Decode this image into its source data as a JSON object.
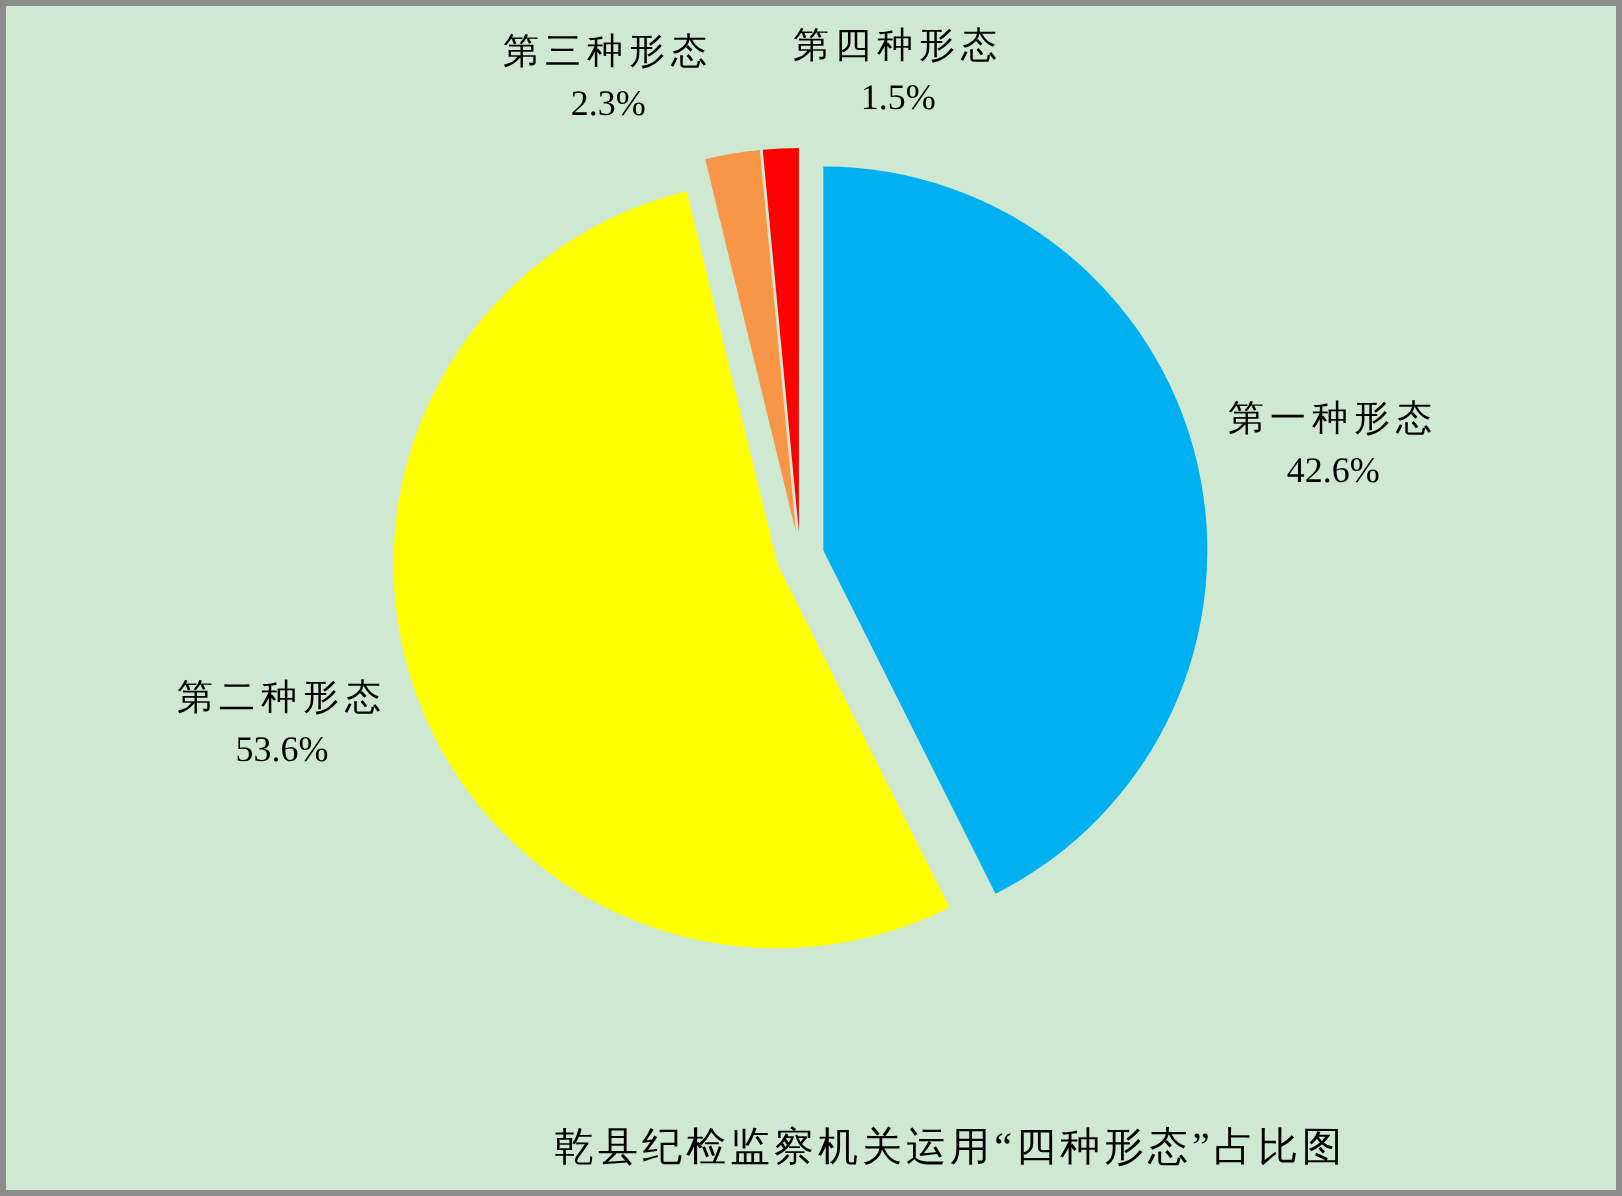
{
  "chart_data": {
    "type": "pie",
    "title": "乾县纪检监察机关运用“四种形态”占比图",
    "categories": [
      "第一种形态",
      "第二种形态",
      "第三种形态",
      "第四种形态"
    ],
    "values": [
      42.6,
      53.6,
      2.3,
      1.5
    ],
    "value_labels": [
      "42.6%",
      "53.6%",
      "2.3%",
      "1.5%"
    ],
    "colors": [
      "#00b0f0",
      "#ffff00",
      "#f79646",
      "#ff0000"
    ]
  }
}
